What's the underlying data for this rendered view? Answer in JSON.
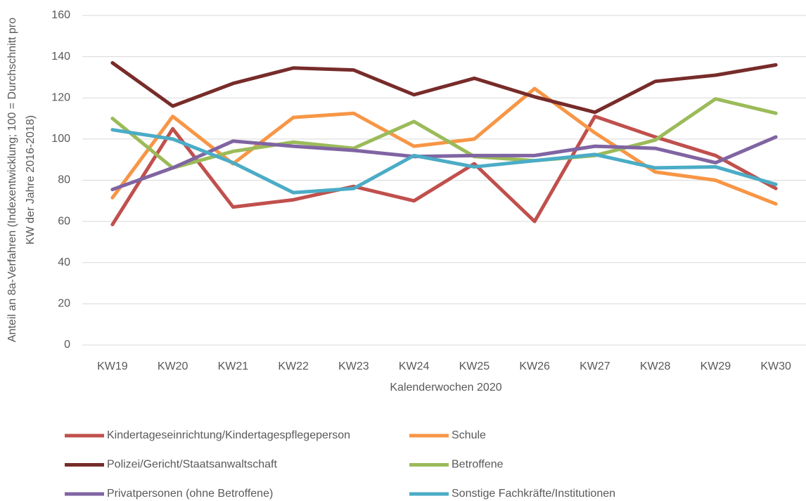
{
  "chart_data": {
    "type": "line",
    "y_label": [
      "Anteil an 8a-Verfahren (Indexentwicklung; 100 = Durchschnitt pro",
      "KW der Jahre 2016-2018)"
    ],
    "x_label": "Kalenderwochen 2020",
    "categories": [
      "KW19",
      "KW20",
      "KW21",
      "KW22",
      "KW23",
      "KW24",
      "KW25",
      "KW26",
      "KW27",
      "KW28",
      "KW29",
      "KW30"
    ],
    "ylim": [
      0,
      160
    ],
    "yticks": [
      0,
      20,
      40,
      60,
      80,
      100,
      120,
      140,
      160
    ],
    "grid": true,
    "series": [
      {
        "name": "Kindertageseinrichtung/Kindertagespflegeperson",
        "color": "#c0504d",
        "values": [
          58.5,
          105,
          67,
          70.5,
          77,
          70,
          88,
          60,
          111,
          101,
          92,
          76
        ]
      },
      {
        "name": "Schule",
        "color": "#f79646",
        "values": [
          71.5,
          111,
          88,
          110.5,
          112.5,
          96.5,
          100,
          124.5,
          103,
          84,
          80,
          68.5
        ]
      },
      {
        "name": "Polizei/Gericht/Staatsanwaltschaft",
        "color": "#772c2a",
        "values": [
          137,
          116,
          127,
          134.5,
          133.5,
          121.5,
          129.5,
          120.5,
          113,
          128,
          131,
          136
        ]
      },
      {
        "name": "Betroffene",
        "color": "#9bbb59",
        "values": [
          110,
          86,
          94,
          98.5,
          95.5,
          108.5,
          91.5,
          89.5,
          92,
          99.5,
          119.5,
          112.5
        ]
      },
      {
        "name": "Privatpersonen (ohne Betroffene)",
        "color": "#8064a2",
        "values": [
          75.5,
          86,
          99,
          96.5,
          94.5,
          91.5,
          92,
          92,
          96.5,
          95.5,
          88.5,
          101
        ]
      },
      {
        "name": "Sonstige Fachkräfte/Institutionen",
        "color": "#4bacc6",
        "values": [
          104.5,
          100,
          88.5,
          74,
          76,
          92,
          86.5,
          89.5,
          92.5,
          86,
          86.5,
          78
        ]
      }
    ]
  }
}
